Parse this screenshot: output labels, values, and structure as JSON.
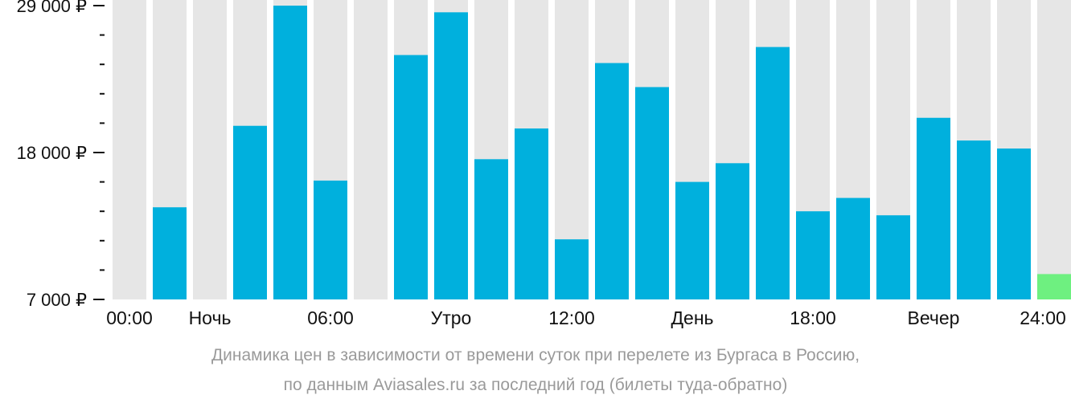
{
  "chart_data": {
    "type": "bar",
    "title": "",
    "xlabel": "",
    "ylabel": "",
    "ylim": [
      7000,
      29000
    ],
    "y_ticks": [
      "29 000 ₽",
      "18 000 ₽",
      "7 000 ₽"
    ],
    "y_tick_values": [
      29000,
      18000,
      7000
    ],
    "x_tick_labels": [
      "00:00",
      "Ночь",
      "06:00",
      "Утро",
      "12:00",
      "День",
      "18:00",
      "Вечер",
      "24:00"
    ],
    "categories": [
      "0",
      "1",
      "2",
      "3",
      "4",
      "5",
      "6",
      "7",
      "8",
      "9",
      "10",
      "11",
      "12",
      "13",
      "14",
      "15",
      "16",
      "17",
      "18",
      "19",
      "20",
      "21",
      "22",
      "23"
    ],
    "values": [
      null,
      13900,
      null,
      20000,
      29000,
      15900,
      null,
      25300,
      28500,
      17500,
      19800,
      11500,
      24700,
      22900,
      15800,
      17200,
      25900,
      13600,
      14600,
      13300,
      20600,
      18900,
      18300,
      8900
    ],
    "colors": {
      "bar": "#00b0dd",
      "bar_highlight": "#6ef080",
      "background_column": "#e6e6e6",
      "axis_text": "#111111",
      "caption_text": "#9a9a9a"
    },
    "highlight_index": 23,
    "grid": false,
    "legend": "none"
  },
  "caption": {
    "line1": "Динамика цен в зависимости от времени суток при перелете из Бургаса в Россию,",
    "line2": "по данным Aviasales.ru за последний год (билеты туда-обратно)"
  }
}
